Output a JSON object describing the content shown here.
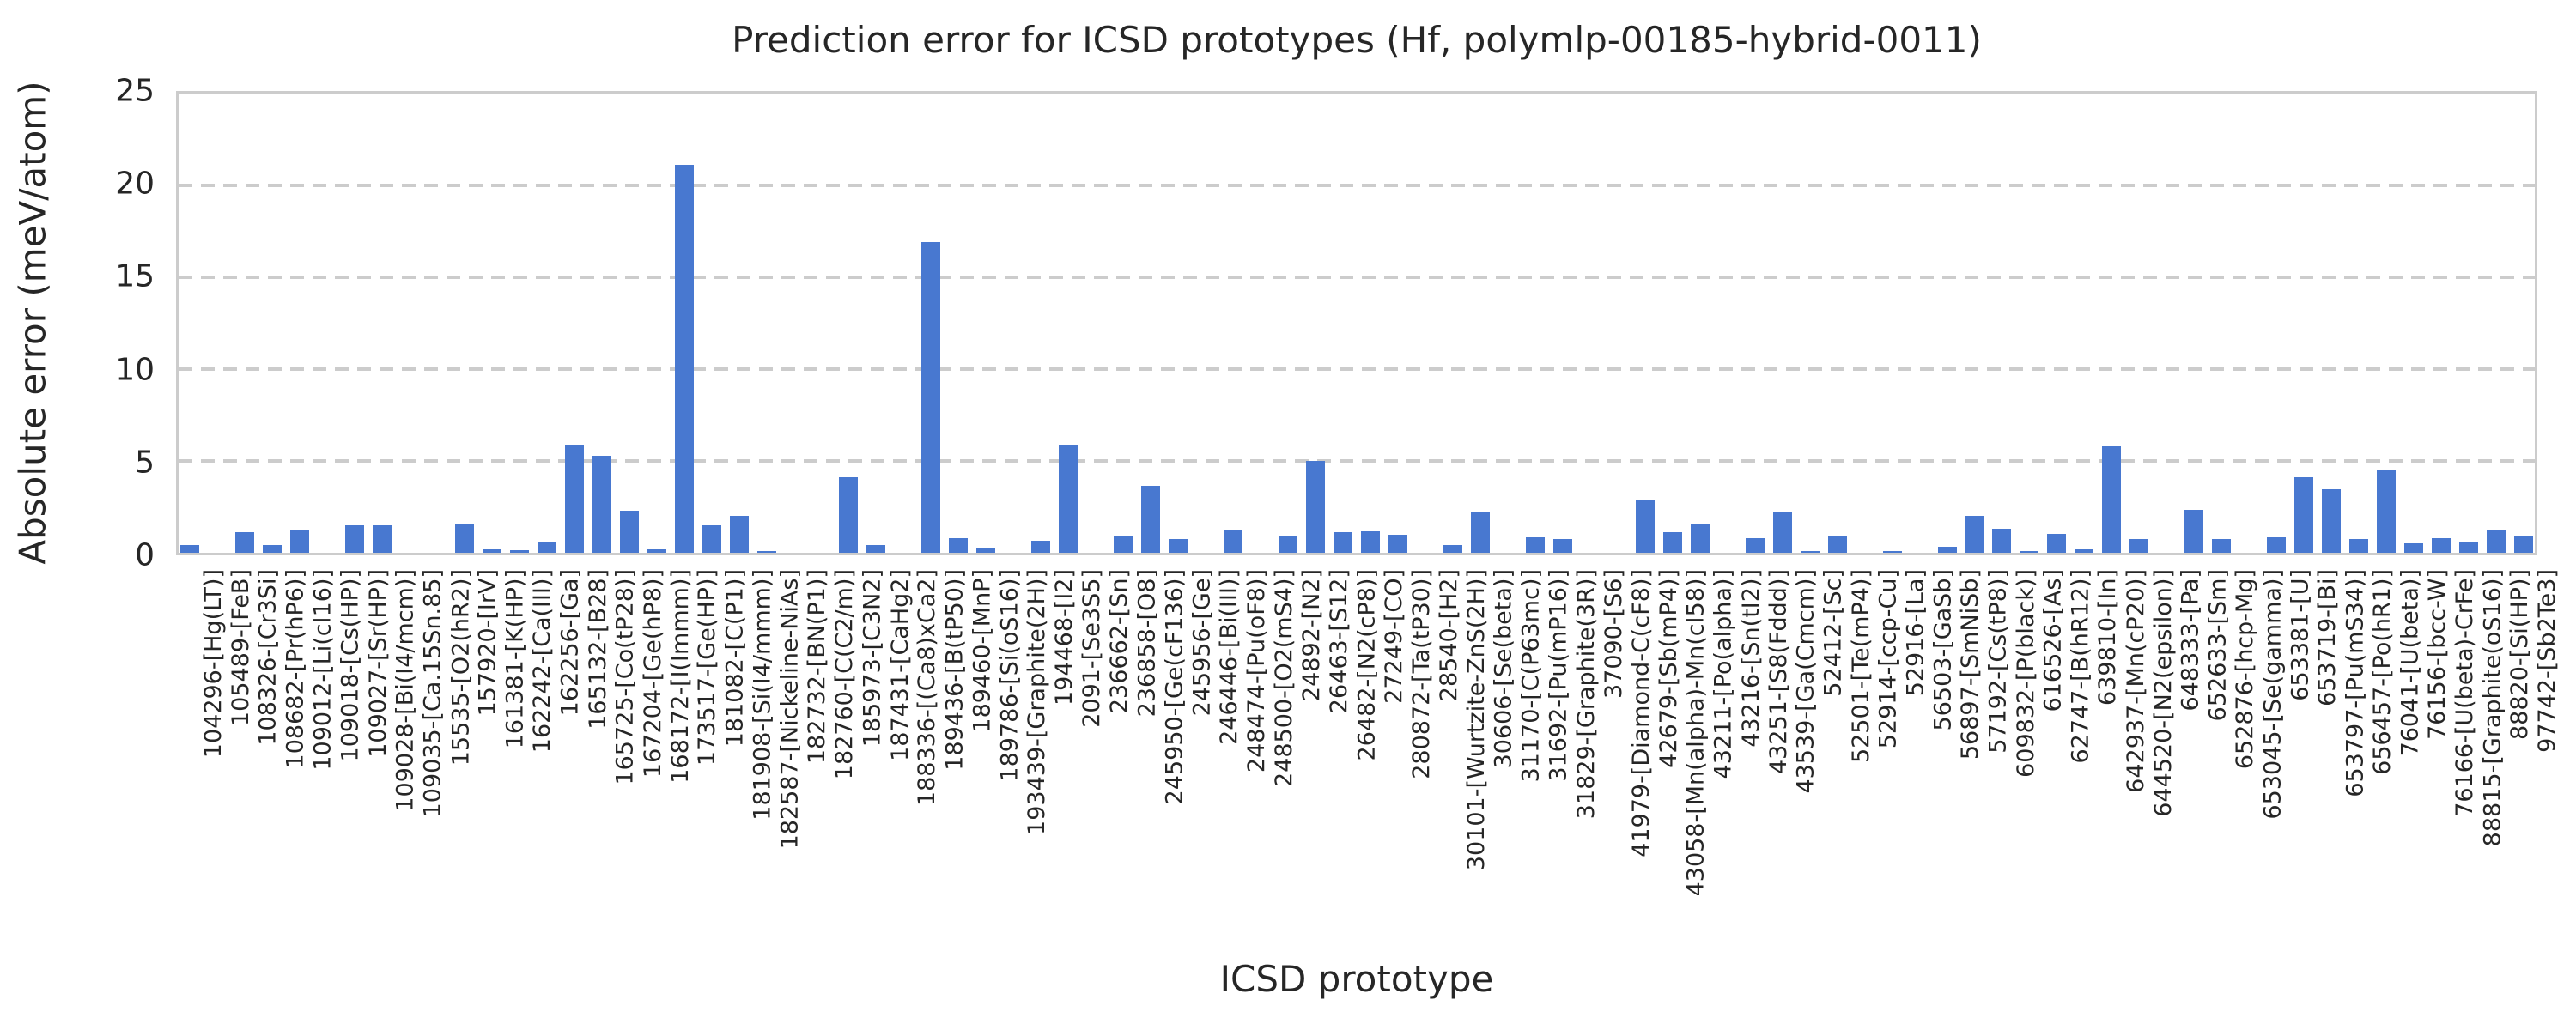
{
  "chart_data": {
    "type": "bar",
    "title": "Prediction error for ICSD prototypes (Hf, polymlp-00185-hybrid-0011)",
    "xlabel": "ICSD prototype",
    "ylabel": "Absolute error (meV/atom)",
    "ylim": [
      0,
      25
    ],
    "yticks": [
      0,
      5,
      10,
      15,
      20,
      25
    ],
    "grid": "horizontal-dashed",
    "legend": "none",
    "bar_color": "#4878d0",
    "grid_color": "#cccccc",
    "text_color": "#262626",
    "categories": [
      "104296-[Hg(LT)]",
      "105489-[FeB]",
      "108326-[Cr3Si]",
      "108682-[Pr(hP6)]",
      "109012-[Li(cI16)]",
      "109018-[Cs(HP)]",
      "109027-[Sr(HP)]",
      "109028-[Bi(I4/mcm)]",
      "109035-[Ca.15Sn.85]",
      "15535-[O2(hR2)]",
      "157920-[IrV]",
      "161381-[K(HP)]",
      "162242-[Ca(III)]",
      "162256-[Ga]",
      "165132-[B28]",
      "165725-[Co(tP28)]",
      "167204-[Ge(hP8)]",
      "168172-[I(Immm)]",
      "173517-[Ge(HP)]",
      "181082-[C(P1)]",
      "181908-[Si(I4/mmm)]",
      "182587-[Nickeline-NiAs]",
      "182732-[BN(P1)]",
      "182760-[C(C2/m)]",
      "185973-[C3N2]",
      "187431-[CaHg2]",
      "188336-[(Ca8)xCa2]",
      "189436-[B(tP50)]",
      "189460-[MnP]",
      "189786-[Si(oS16)]",
      "193439-[Graphite(2H)]",
      "194468-[I2]",
      "2091-[Se3S5]",
      "236662-[Sn]",
      "236858-[O8]",
      "245950-[Ge(cF136)]",
      "245956-[Ge]",
      "246446-[Bi(III)]",
      "248474-[Pu(oF8)]",
      "248500-[O2(mS4)]",
      "24892-[N2]",
      "26463-[S12]",
      "26482-[N2(cP8)]",
      "27249-[CO]",
      "280872-[Ta(tP30)]",
      "28540-[H2]",
      "30101-[Wurtzite-ZnS(2H)]",
      "30606-[Se(beta)]",
      "31170-[C(P63mc)]",
      "31692-[Pu(mP16)]",
      "31829-[Graphite(3R)]",
      "37090-[S6]",
      "41979-[Diamond-C(cF8)]",
      "42679-[Sb(mP4)]",
      "43058-[Mn(alpha)-Mn(cI58)]",
      "43211-[Po(alpha)]",
      "43216-[Sn(tI2)]",
      "43251-[S8(Fddd)]",
      "43539-[Ga(Cmcm)]",
      "52412-[Sc]",
      "52501-[Te(mP4)]",
      "52914-[ccp-Cu]",
      "52916-[La]",
      "56503-[GaSb]",
      "56897-[SmNiSb]",
      "57192-[Cs(tP8)]",
      "609832-[P(black)]",
      "616526-[As]",
      "62747-[B(hR12)]",
      "639810-[In]",
      "642937-[Mn(cP20)]",
      "644520-[N2(epsilon)]",
      "648333-[Pa]",
      "652633-[Sm]",
      "652876-[hcp-Mg]",
      "653045-[Se(gamma)]",
      "653381-[U]",
      "653719-[Bi]",
      "653797-[Pu(mS34)]",
      "656457-[Po(hR1)]",
      "76041-[U(beta)]",
      "76156-[bcc-W]",
      "76166-[U(beta)-CrFe]",
      "88815-[Graphite(oS16)]",
      "88820-[Si(HP)]",
      "97742-[Sb2Te3]"
    ],
    "values": [
      0.4,
      0,
      1.1,
      0.4,
      1.2,
      0,
      1.5,
      1.5,
      0,
      0,
      1.6,
      0.2,
      0.15,
      0.55,
      5.85,
      5.3,
      2.3,
      0.2,
      21.1,
      1.5,
      2.0,
      0.1,
      0,
      0,
      4.1,
      0.4,
      0,
      16.9,
      0.8,
      0.25,
      0,
      0.65,
      5.9,
      0,
      0.9,
      3.65,
      0.75,
      0,
      1.25,
      0,
      0.9,
      5.0,
      1.1,
      1.15,
      1.0,
      0,
      0.4,
      2.25,
      0,
      0.85,
      0.75,
      0,
      0,
      2.85,
      1.1,
      1.55,
      0,
      0.8,
      2.2,
      0.1,
      0.9,
      0,
      0.1,
      0,
      0.35,
      2.0,
      1.3,
      0.1,
      1.05,
      0.2,
      5.8,
      0.75,
      0,
      2.35,
      0.75,
      0,
      0.85,
      4.1,
      3.45,
      0.75,
      4.55,
      0.5,
      0.8,
      0.6,
      1.2,
      0.95
    ]
  }
}
